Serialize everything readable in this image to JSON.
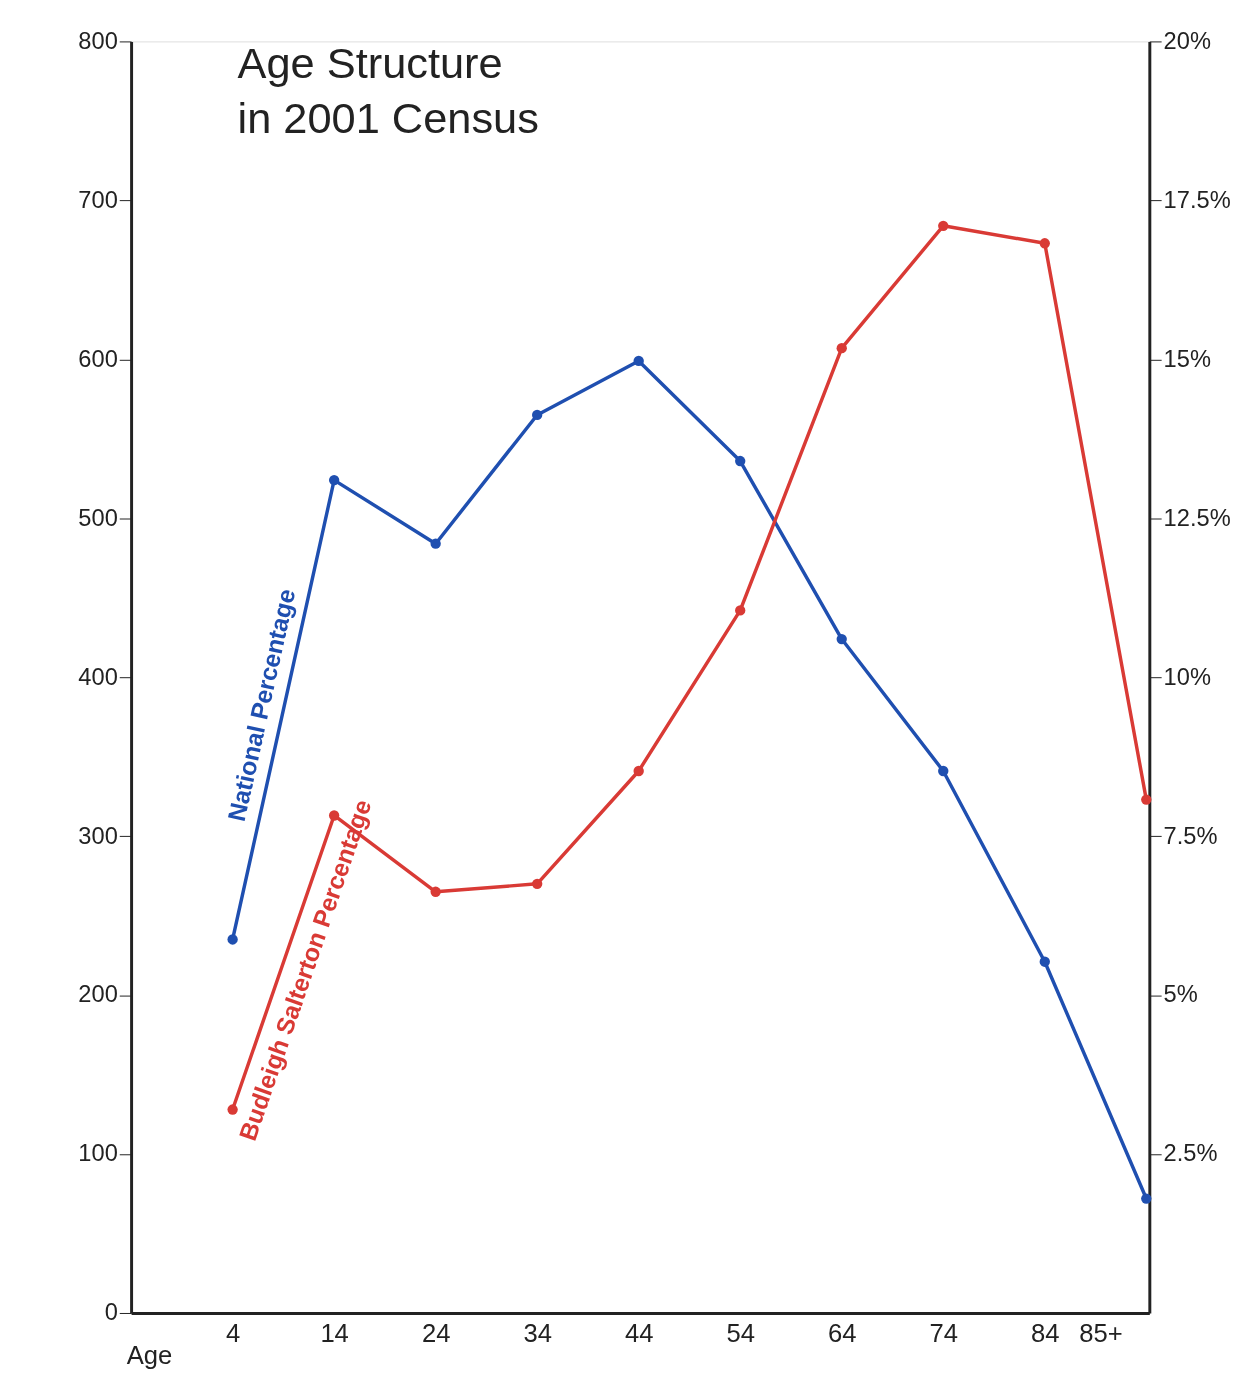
{
  "chart_data": {
    "type": "line",
    "title": "Age Structure\nin 2001 Census",
    "xlabel": "Age",
    "x": [
      4,
      14,
      24,
      34,
      44,
      54,
      64,
      74,
      84,
      94
    ],
    "xlim": [
      -6,
      94.3
    ],
    "xticks": [
      4,
      14,
      24,
      34,
      44,
      54,
      64,
      74,
      84,
      {
        "value": 89.5,
        "label": "85+"
      }
    ],
    "ylim": [
      0,
      800
    ],
    "yticks": [
      0,
      100,
      200,
      300,
      400,
      500,
      600,
      700,
      800
    ],
    "y2lim": [
      0,
      20
    ],
    "y2ticks": [
      {
        "value": 2.5,
        "label": "2.5%"
      },
      {
        "value": 5,
        "label": "5%"
      },
      {
        "value": 7.5,
        "label": "7.5%"
      },
      {
        "value": 10,
        "label": "10%"
      },
      {
        "value": 12.5,
        "label": "12.5%"
      },
      {
        "value": 15,
        "label": "15%"
      },
      {
        "value": 17.5,
        "label": "17.5%"
      },
      {
        "value": 20,
        "label": "20%"
      }
    ],
    "series": [
      {
        "name": "National Percentage",
        "color": "#1f4fb0",
        "values": [
          235,
          524,
          484,
          565,
          599,
          536,
          424,
          341,
          221,
          72
        ]
      },
      {
        "name": "Budleigh Salterton Percentage",
        "color": "#d93a35",
        "values": [
          128,
          313,
          265,
          270,
          341,
          442,
          607,
          684,
          673,
          323
        ]
      }
    ],
    "marker": "circle",
    "line_style": "solid",
    "grid": false,
    "legend": false
  }
}
